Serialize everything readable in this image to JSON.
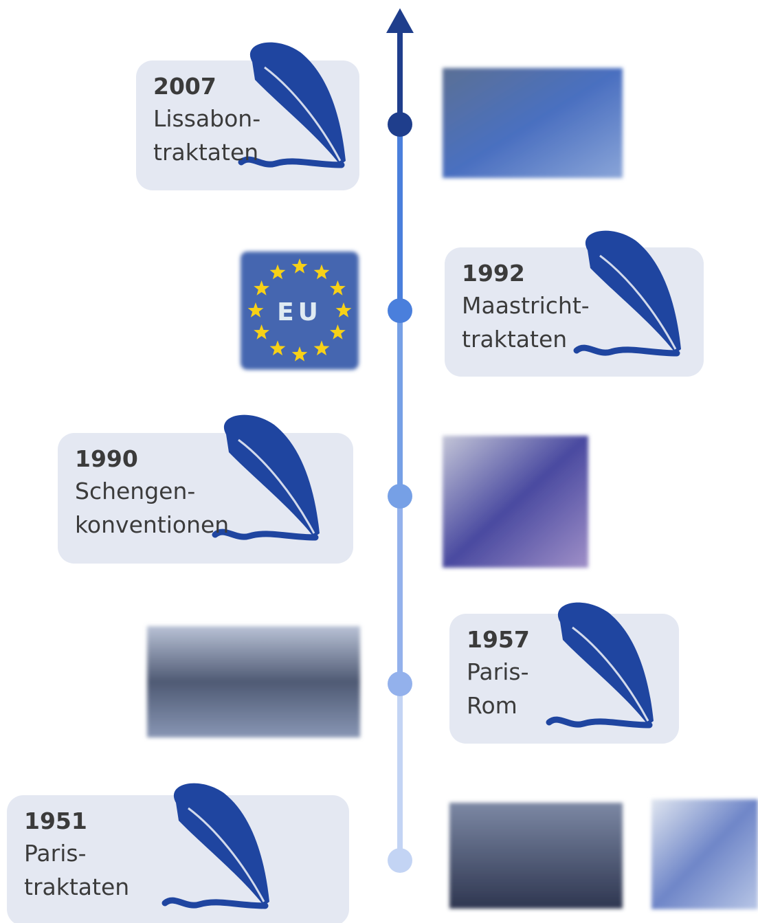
{
  "events": [
    {
      "year": "2007",
      "lines": [
        "Lissabon-",
        "traktaten"
      ]
    },
    {
      "year": "1992",
      "lines": [
        "Maastricht-",
        "traktaten"
      ]
    },
    {
      "year": "1990",
      "lines": [
        "Schengen-",
        "konventionen"
      ]
    },
    {
      "year": "1957",
      "lines": [
        "Paris-",
        "Rom"
      ]
    },
    {
      "year": "1951",
      "lines": [
        "Paris-",
        "traktaten"
      ]
    }
  ],
  "badge": "EU"
}
